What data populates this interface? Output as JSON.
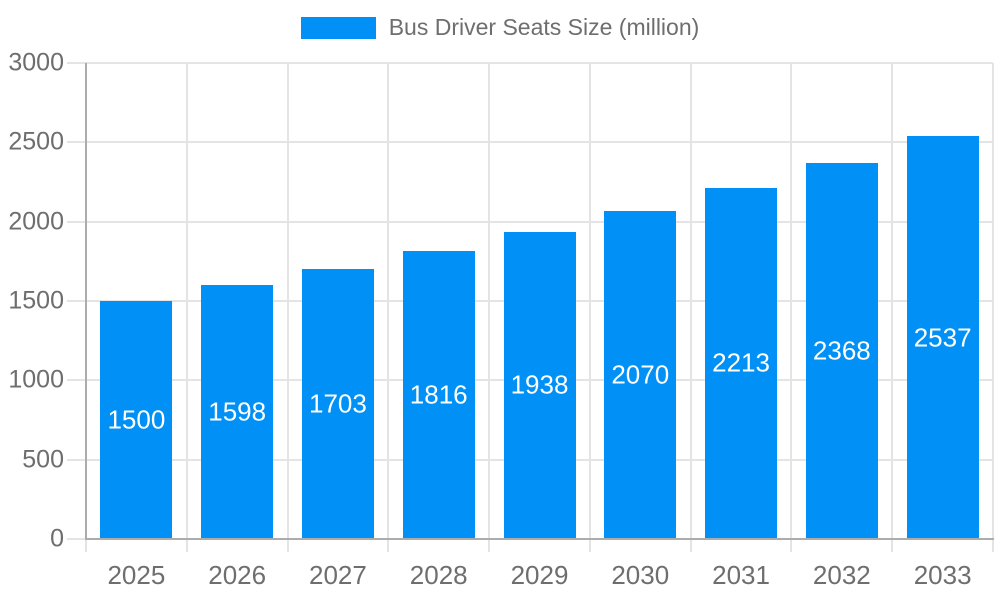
{
  "chart_data": {
    "type": "bar",
    "title": "Bus Driver Seats Size (million)",
    "legend": {
      "position": "top",
      "label": "Bus Driver Seats Size (million)"
    },
    "categories": [
      "2025",
      "2026",
      "2027",
      "2028",
      "2029",
      "2030",
      "2031",
      "2032",
      "2033"
    ],
    "series": [
      {
        "name": "Bus Driver Seats Size (million)",
        "color": "#0190F5",
        "values": [
          1500,
          1598,
          1703,
          1816,
          1938,
          2070,
          2213,
          2368,
          2537
        ]
      }
    ],
    "value_labels": {
      "show": true,
      "position": "middle",
      "color": "#FFFFFF"
    },
    "xlabel": "",
    "ylabel": "",
    "ylim": [
      0,
      3000
    ],
    "y_ticks": [
      0,
      500,
      1000,
      1500,
      2000,
      2500,
      3000
    ],
    "grid": true,
    "colors": {
      "bar": "#0190F5",
      "axis_text": "#6E6E6E",
      "grid_line": "#E4E4E4",
      "axis_line": "#ACACAC",
      "background": "#FFFFFF"
    }
  }
}
